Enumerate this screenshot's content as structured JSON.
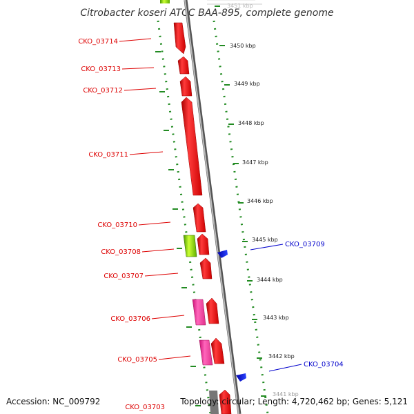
{
  "title": "Citrobacter koseri ATCC BAA-895, complete genome",
  "accession": "Accession: NC_009792",
  "topology": "Topology: circular; Length: 4,720,462 bp; Genes: 5,121",
  "ticks": [
    "3451 kbp",
    "3450 kbp",
    "3449 kbp",
    "3448 kbp",
    "3447 kbp",
    "3446 kbp",
    "3445 kbp",
    "3444 kbp",
    "3443 kbp",
    "3442 kbp",
    "3441 kbp"
  ],
  "left_labels": [
    "CKO_03714",
    "CKO_03713",
    "CKO_03712",
    "CKO_03711",
    "CKO_03710",
    "CKO_03708",
    "CKO_03707",
    "CKO_03706",
    "CKO_03705",
    "CKO_03703"
  ],
  "right_labels": [
    "CKO_03709",
    "CKO_03704"
  ],
  "colors": {
    "forward_gene": "#ff0000",
    "reverse_gene": "#0000ff",
    "left_label": "#dd0000",
    "right_label": "#0000cc",
    "rna_gene": "#ff3399",
    "other_gene": "#66cc00",
    "scale_tick": "#228b22",
    "backbone": "#888888"
  }
}
